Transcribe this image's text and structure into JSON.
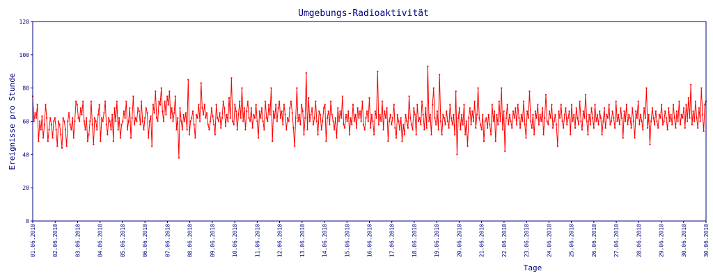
{
  "chart_data": {
    "type": "line",
    "title": "Umgebungs-Radioaktivität",
    "xlabel": "Tage",
    "ylabel": "Ereignisse pro Stunde",
    "xlim": [
      "01.06.2010",
      "30.06.2010"
    ],
    "ylim": [
      0,
      120
    ],
    "y_ticks": [
      0,
      20,
      40,
      60,
      80,
      100,
      120
    ],
    "x_ticks": [
      "01.06.2010",
      "02.06.2010",
      "03.06.2010",
      "04.06.2010",
      "05.06.2010",
      "06.06.2010",
      "07.06.2010",
      "08.06.2010",
      "09.06.2010",
      "10.06.2010",
      "11.06.2010",
      "12.06.2010",
      "13.06.2010",
      "14.06.2010",
      "15.06.2010",
      "16.06.2010",
      "17.06.2010",
      "18.06.2010",
      "19.06.2010",
      "20.06.2010",
      "21.06.2010",
      "22.06.2010",
      "23.06.2010",
      "24.06.2010",
      "25.06.2010",
      "26.06.2010",
      "27.06.2010",
      "28.06.2010",
      "29.06.2010",
      "30.06.2010",
      "30.06.2010"
    ],
    "grid": false,
    "series_color": "#ff0000",
    "axis_color": "#000080",
    "series": [
      {
        "values": [
          75,
          60,
          65,
          62,
          70,
          48,
          60,
          55,
          63,
          50,
          58,
          70,
          62,
          48,
          55,
          62,
          58,
          50,
          60,
          62,
          55,
          45,
          60,
          58,
          52,
          44,
          62,
          60,
          55,
          45,
          60,
          65,
          58,
          55,
          62,
          50,
          60,
          72,
          70,
          62,
          60,
          68,
          64,
          72,
          60,
          55,
          62,
          48,
          52,
          60,
          72,
          58,
          46,
          62,
          60,
          55,
          64,
          70,
          48,
          62,
          60,
          65,
          72,
          58,
          52,
          62,
          60,
          55,
          64,
          48,
          68,
          60,
          72,
          55,
          62,
          50,
          58,
          60,
          66,
          62,
          72,
          55,
          60,
          68,
          50,
          62,
          75,
          58,
          62,
          60,
          68,
          66,
          58,
          72,
          60,
          55,
          62,
          68,
          65,
          50,
          60,
          63,
          45,
          70,
          65,
          78,
          62,
          60,
          72,
          70,
          80,
          66,
          60,
          72,
          64,
          75,
          70,
          78,
          62,
          68,
          60,
          65,
          75,
          55,
          62,
          38,
          68,
          60,
          55,
          64,
          60,
          65,
          55,
          85,
          52,
          60,
          62,
          66,
          58,
          50,
          64,
          62,
          70,
          60,
          83,
          68,
          64,
          70,
          62,
          65,
          58,
          55,
          60,
          68,
          63,
          58,
          52,
          70,
          62,
          60,
          65,
          56,
          62,
          72,
          68,
          57,
          64,
          60,
          74,
          62,
          86,
          60,
          58,
          70,
          66,
          55,
          64,
          72,
          62,
          80,
          60,
          68,
          55,
          66,
          72,
          62,
          60,
          68,
          56,
          64,
          62,
          70,
          60,
          50,
          66,
          62,
          68,
          60,
          55,
          72,
          62,
          60,
          70,
          64,
          80,
          48,
          66,
          62,
          70,
          60,
          68,
          72,
          62,
          66,
          58,
          70,
          64,
          55,
          62,
          60,
          68,
          72,
          65,
          56,
          45,
          62,
          80,
          60,
          64,
          58,
          70,
          66,
          52,
          62,
          89,
          55,
          74,
          60,
          64,
          68,
          58,
          62,
          72,
          60,
          52,
          66,
          64,
          55,
          60,
          68,
          70,
          48,
          62,
          66,
          58,
          72,
          64,
          60,
          55,
          62,
          50,
          68,
          60,
          66,
          62,
          75,
          58,
          56,
          64,
          60,
          66,
          52,
          62,
          58,
          70,
          60,
          64,
          56,
          68,
          62,
          66,
          60,
          72,
          58,
          55,
          62,
          66,
          60,
          74,
          56,
          64,
          60,
          52,
          66,
          62,
          90,
          58,
          64,
          60,
          72,
          55,
          66,
          62,
          68,
          48,
          60,
          64,
          58,
          62,
          70,
          56,
          50,
          64,
          60,
          55,
          62,
          48,
          58,
          52,
          64,
          60,
          56,
          75,
          62,
          58,
          55,
          68,
          64,
          52,
          70,
          60,
          62,
          58,
          72,
          64,
          55,
          68,
          56,
          93,
          60,
          64,
          52,
          70,
          80,
          62,
          58,
          66,
          55,
          88,
          60,
          52,
          64,
          62,
          58,
          66,
          60,
          56,
          70,
          62,
          58,
          64,
          52,
          78,
          40,
          62,
          68,
          55,
          64,
          58,
          70,
          52,
          60,
          45,
          62,
          68,
          58,
          66,
          60,
          72,
          56,
          64,
          80,
          62,
          58,
          55,
          64,
          48,
          60,
          62,
          56,
          64,
          58,
          52,
          70,
          60,
          66,
          48,
          64,
          58,
          72,
          60,
          80,
          55,
          66,
          42,
          62,
          70,
          58,
          64,
          60,
          56,
          66,
          62,
          68,
          58,
          70,
          62,
          56,
          64,
          60,
          72,
          58,
          50,
          66,
          62,
          78,
          60,
          56,
          64,
          52,
          66,
          62,
          70,
          58,
          64,
          60,
          68,
          52,
          62,
          76,
          60,
          58,
          66,
          62,
          70,
          56,
          60,
          64,
          58,
          45,
          66,
          62,
          70,
          60,
          56,
          64,
          68,
          58,
          62,
          66,
          52,
          70,
          60,
          64,
          56,
          68,
          62,
          58,
          72,
          60,
          55,
          66,
          62,
          76,
          60,
          52,
          64,
          58,
          68,
          62,
          56,
          70,
          60,
          64,
          58,
          66,
          62,
          52,
          60,
          68,
          56,
          64,
          62,
          70,
          58,
          60,
          66,
          62,
          56,
          72,
          60,
          64,
          58,
          68,
          62,
          50,
          66,
          60,
          70,
          58,
          64,
          62,
          56,
          68,
          60,
          50,
          66,
          62,
          72,
          58,
          64,
          60,
          55,
          68,
          62,
          80,
          56,
          64,
          46,
          60,
          68,
          62,
          58,
          66,
          60,
          56,
          64,
          62,
          70,
          58,
          60,
          66,
          62,
          55,
          68,
          60,
          64,
          58,
          70,
          62,
          56,
          66,
          60,
          72,
          58,
          64,
          62,
          68,
          56,
          70,
          60,
          74,
          62,
          82,
          58,
          66,
          60,
          72,
          62,
          56,
          68,
          60,
          80,
          64,
          54,
          70,
          72
        ]
      }
    ]
  }
}
